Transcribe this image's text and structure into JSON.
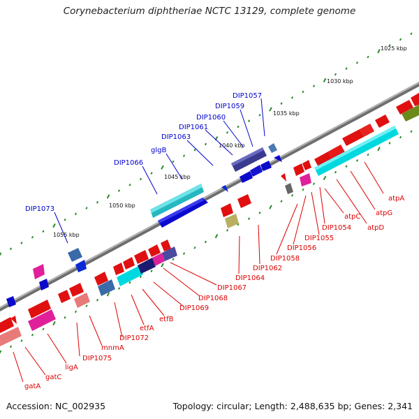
{
  "title": "Corynebacterium diphtheriae NCTC 13129, complete genome",
  "footer": {
    "accession": "Accession: NC_002935",
    "topology": "Topology: circular; Length: 2,488,635 bp; Genes: 2,341"
  },
  "scale_ticks": [
    "1025 kbp",
    "1030 kbp",
    "1035 kbp",
    "1040 kbp",
    "1045 kbp",
    "1050 kbp",
    "1055 kbp"
  ],
  "genes_top": [
    "DIP1057",
    "DIP1059",
    "DIP1060",
    "DIP1061",
    "DIP1063",
    "glgB",
    "DIP1066",
    "DIP1073"
  ],
  "genes_bottom": [
    "atpA",
    "atpG",
    "atpD",
    "atpC",
    "DIP1054",
    "DIP1055",
    "DIP1056",
    "DIP1058",
    "DIP1062",
    "DIP1064",
    "DIP1067",
    "DIP1068",
    "DIP1069",
    "etfB",
    "etfA",
    "DIP1072",
    "mnmA",
    "DIP1075",
    "ligA",
    "gatC",
    "gatA"
  ],
  "colors": {
    "top_label": "#0000cc",
    "bottom_label": "#dd0000",
    "backbone": "#8a8a8a",
    "tick": "#2a8a2a"
  }
}
